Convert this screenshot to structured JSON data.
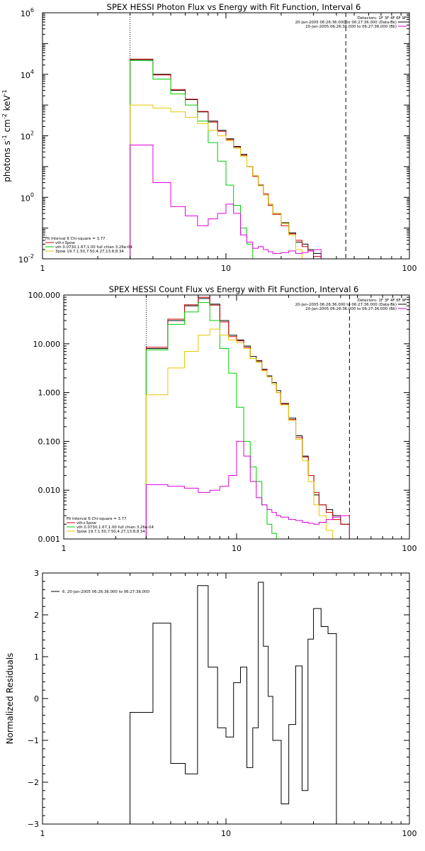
{
  "chart_data": [
    {
      "type": "line",
      "title": "SPEX HESSI Photon Flux vs Energy with Fit Function, Interval 6",
      "ylabel": "photons s-1 cm-2 keV-1",
      "ylabel_parts": [
        "photons s",
        "-1",
        " cm",
        "-2",
        " keV",
        "-1"
      ],
      "xscale": "log",
      "yscale": "log",
      "xlim": [
        1,
        100
      ],
      "ylim": [
        0.01,
        1000000
      ],
      "xticks": [
        "1",
        "10",
        "100"
      ],
      "yticks": [
        {
          "base": "10",
          "exp": "-2",
          "value": 0.01
        },
        {
          "base": "10",
          "exp": "0",
          "value": 1
        },
        {
          "base": "10",
          "exp": "2",
          "value": 100
        },
        {
          "base": "10",
          "exp": "4",
          "value": 10000
        },
        {
          "base": "10",
          "exp": "6",
          "value": 1000000
        }
      ],
      "vlines": [
        {
          "x": 3,
          "style": "dotted"
        },
        {
          "x": 45,
          "style": "dashed"
        }
      ],
      "legend_topright": [
        "Detectors: 1F 3F 4F 6F 9F",
        "20-Jan-2005 06:26:36.000 to 06:27:36.000 (Data-Bk)",
        "20-Jan-2005 06:26:36.000 to 06:27:36.000 (Bk)"
      ],
      "legend_topright_colors": [
        "#000000",
        "#dd00dd"
      ],
      "legend_bottomleft": [
        "Fit Interval 6    Chi-square = 3.77",
        "vth+3pow",
        "vth 0.0730,1.67,1.00  full chian 3.26e-04",
        "3pow 19.7,1.50,7.50,4.27,13.8,8.34"
      ],
      "legend_bottomleft_colors": [
        "#cc0000",
        "#00cc00",
        "#e6c800"
      ],
      "bin_edges": [
        3,
        4,
        5,
        6,
        7,
        8,
        9,
        10,
        11,
        12,
        13,
        14,
        15,
        16,
        17,
        18,
        20,
        22,
        24,
        26,
        28,
        30,
        33,
        36,
        40,
        45
      ],
      "series": [
        {
          "color": "#000000",
          "values": [
            30000,
            10000,
            3000,
            1500,
            600,
            300,
            150,
            80,
            45,
            25,
            10,
            5,
            2.5,
            1.2,
            0.6,
            0.3,
            0.15,
            0.07,
            0.035,
            0.03,
            0.02,
            0.015
          ]
        },
        {
          "color": "#cc0000",
          "values": [
            31000,
            9500,
            3200,
            1550,
            620,
            280,
            140,
            75,
            42,
            23,
            10,
            4.8,
            2.4,
            1.3,
            0.55,
            0.28,
            0.12,
            0.065,
            0.04,
            0.025,
            0.018,
            0.012
          ]
        },
        {
          "color": "#00cc00",
          "values": [
            28000,
            7000,
            2300,
            1000,
            300,
            60,
            15,
            2.5,
            0.55,
            0.1,
            0.03,
            0.01
          ]
        },
        {
          "color": "#e6c800",
          "values": [
            1000,
            800,
            600,
            400,
            250,
            150,
            100,
            70,
            40,
            22,
            10,
            5,
            2.4,
            1.2,
            0.6,
            0.3,
            0.14,
            0.06,
            0.02,
            0.01
          ]
        },
        {
          "color": "#dd00dd",
          "values": [
            50,
            3,
            0.5,
            0.25,
            0.12,
            0.2,
            0.3,
            0.6,
            0.3,
            0.06,
            0.035,
            0.022,
            0.025,
            0.02,
            0.017,
            0.015,
            0.016,
            0.018,
            0.015,
            0.016,
            0.018,
            0.02
          ]
        }
      ]
    },
    {
      "type": "line",
      "title": "SPEX HESSI Count Flux vs Energy with Fit Function, Interval 6",
      "ylabel": "",
      "xscale": "log",
      "yscale": "log",
      "xlim": [
        1,
        100
      ],
      "ylim": [
        0.001,
        100
      ],
      "xticks": [
        "1",
        "10",
        "100"
      ],
      "yticks": [
        {
          "label": "0.001",
          "value": 0.001
        },
        {
          "label": "0.010",
          "value": 0.01
        },
        {
          "label": "0.100",
          "value": 0.1
        },
        {
          "label": "1.000",
          "value": 1
        },
        {
          "label": "10.000",
          "value": 10
        },
        {
          "label": "100.000",
          "value": 100
        }
      ],
      "vlines": [
        {
          "x": 3,
          "style": "dotted"
        },
        {
          "x": 45,
          "style": "dashed"
        }
      ],
      "legend_topright": [
        "Detectors: 1F 3F 4F 6F 9F",
        "20-Jan-2005 06:26:36.000 to 06:27:36.000 (Data-Bk)",
        "20-Jan-2005 06:26:36.000 to 06:27:36.000 (Bk)"
      ],
      "legend_topright_colors": [
        "#000000",
        "#dd00dd"
      ],
      "legend_bottomleft": [
        "Fit Interval 6    Chi-square = 3.77",
        "vth+3pow",
        "vth 0.0730,1.67,1.00  full chian 3.26e-04",
        "3pow 19.7,1.50,7.50,4.27,13.8,8.34"
      ],
      "legend_bottomleft_colors": [
        "#cc0000",
        "#00cc00",
        "#e6c800"
      ],
      "bin_edges": [
        3,
        4,
        5,
        6,
        7,
        8,
        9,
        10,
        11,
        12,
        13,
        14,
        15,
        16,
        17,
        18,
        20,
        22,
        24,
        26,
        28,
        30,
        33,
        36,
        40,
        45
      ],
      "series": [
        {
          "color": "#000000",
          "values": [
            8,
            30,
            60,
            85,
            65,
            30,
            15,
            12,
            9,
            5.5,
            4.5,
            3,
            2.2,
            1.6,
            1.1,
            0.6,
            0.3,
            0.13,
            0.05,
            0.02,
            0.008,
            0.005,
            0.004,
            0.003,
            0.002
          ]
        },
        {
          "color": "#cc0000",
          "values": [
            8.5,
            32,
            63,
            90,
            62,
            28,
            14,
            11.5,
            8.5,
            5,
            4.3,
            2.9,
            2.1,
            1.5,
            1.0,
            0.58,
            0.28,
            0.12,
            0.048,
            0.02,
            0.009,
            0.005,
            0.0035,
            0.0025,
            0.002
          ]
        },
        {
          "color": "#00cc00",
          "values": [
            7.5,
            25,
            45,
            70,
            30,
            8,
            2.5,
            0.5,
            0.1,
            0.03,
            0.015,
            0.005,
            0.002,
            0.0013
          ]
        },
        {
          "color": "#e6c800",
          "values": [
            0.9,
            3.2,
            7,
            15,
            20,
            15,
            12,
            10.5,
            8,
            5,
            4.2,
            2.8,
            2.1,
            1.5,
            1.0,
            0.56,
            0.27,
            0.11,
            0.04,
            0.015,
            0.005,
            0.003,
            0.0015
          ]
        },
        {
          "color": "#dd00dd",
          "values": [
            0.013,
            0.012,
            0.011,
            0.009,
            0.01,
            0.012,
            0.02,
            0.1,
            0.05,
            0.015,
            0.007,
            0.005,
            0.004,
            0.0035,
            0.003,
            0.0028,
            0.0025,
            0.0024,
            0.0022,
            0.0021,
            0.002,
            0.0022,
            0.0025,
            0.0028,
            0.003
          ]
        }
      ]
    },
    {
      "type": "line",
      "title": "",
      "ylabel": "Normalized Residuals",
      "xscale": "log",
      "yscale": "linear",
      "xlim": [
        1,
        100
      ],
      "ylim": [
        -3,
        3
      ],
      "xticks": [
        "1",
        "10",
        "100"
      ],
      "yticks": [
        {
          "label": "3",
          "value": 3
        },
        {
          "label": "2",
          "value": 2
        },
        {
          "label": "1",
          "value": 1
        },
        {
          "label": "0",
          "value": 0
        },
        {
          "label": "−1",
          "value": -1
        },
        {
          "label": "−2",
          "value": -2
        },
        {
          "label": "−3",
          "value": -3
        }
      ],
      "legend_topleft": [
        "6. 20-Jan-2005 06:26:36.000 to 06:27:36.000"
      ],
      "bin_edges": [
        3,
        4,
        5,
        6,
        7,
        8,
        9,
        10,
        11,
        12,
        13,
        14,
        15,
        16,
        17,
        18,
        20,
        22,
        24,
        26,
        28,
        30,
        33,
        36,
        40,
        45
      ],
      "series": [
        {
          "color": "#000000",
          "values": [
            -0.33,
            1.8,
            -1.55,
            -1.8,
            2.7,
            0.75,
            -0.7,
            -0.92,
            0.38,
            0.75,
            -1.65,
            -0.7,
            2.78,
            1.25,
            0.05,
            -1.0,
            -2.52,
            -0.62,
            0.78,
            -2.2,
            1.42,
            2.15,
            1.72,
            1.55
          ]
        }
      ]
    }
  ]
}
